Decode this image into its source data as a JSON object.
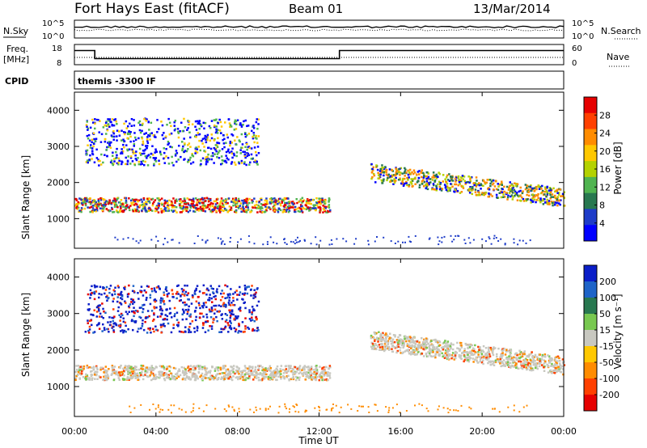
{
  "header": {
    "title": "Fort Hays East (fitACF)",
    "beam": "Beam 01",
    "date": "13/Mar/2014"
  },
  "strips": {
    "nsky_label": "N.Sky",
    "nsky_ticks": [
      "10^5",
      "10^0"
    ],
    "nsearch_label": "N.Search",
    "nsearch_ticks": [
      "10^5",
      "10^0"
    ],
    "freq_label": "Freq.",
    "freq_unit": "[MHz]",
    "freq_ticks": [
      "18",
      "8"
    ],
    "nave_label": "Nave",
    "nave_ticks": [
      "60",
      "0"
    ],
    "cpid_label": "CPID",
    "cpid_value": "themis -3300 IF",
    "freq_steps": [
      {
        "from": "00:00",
        "to": "01:00",
        "mhz": 15
      },
      {
        "from": "01:00",
        "to": "13:00",
        "mhz": 11
      },
      {
        "from": "13:00",
        "to": "24:00",
        "mhz": 15
      }
    ]
  },
  "chart_data": [
    {
      "type": "heatmap",
      "name": "power",
      "xlabel": "Time UT",
      "ylabel": "Slant Range [km]",
      "yticks": [
        "1000",
        "2000",
        "3000",
        "4000"
      ],
      "ylim": [
        180,
        4500
      ],
      "colorbar_label": "Power [dB]",
      "colorbar_ticks": [
        "28",
        "24",
        "20",
        "16",
        "12",
        "8",
        "4"
      ],
      "colorbar_colors": [
        "#e60000",
        "#ff4000",
        "#ff8c00",
        "#ffc800",
        "#b4d200",
        "#50b450",
        "#287850",
        "#1e3cc8",
        "#0000ff"
      ],
      "features": [
        {
          "from": "00:00",
          "to": "12:30",
          "range_km": [
            1200,
            1600
          ],
          "level": "high"
        },
        {
          "from": "14:30",
          "to": "24:00",
          "range_km": [
            1500,
            2500
          ],
          "level": "medium"
        },
        {
          "from": "00:30",
          "to": "09:00",
          "range_km": [
            2500,
            3800
          ],
          "level": "low"
        }
      ]
    },
    {
      "type": "heatmap",
      "name": "velocity",
      "xlabel": "Time UT",
      "ylabel": "Slant Range [km]",
      "yticks": [
        "1000",
        "2000",
        "3000",
        "4000"
      ],
      "ylim": [
        180,
        4500
      ],
      "colorbar_label": "Velocity [m s⁻¹]",
      "colorbar_ticks": [
        "200",
        "100",
        "50",
        "15",
        "-15",
        "-50",
        "-100",
        "-200"
      ],
      "colorbar_colors": [
        "#0a1ec8",
        "#1e64c8",
        "#287850",
        "#78c850",
        "#c8c8c0",
        "#ffc800",
        "#ff8c00",
        "#ff4000",
        "#e60000"
      ],
      "features": [
        {
          "from": "00:00",
          "to": "12:30",
          "range_km": [
            1200,
            1600
          ],
          "level": "near-zero"
        },
        {
          "from": "14:30",
          "to": "24:00",
          "range_km": [
            1500,
            2500
          ],
          "level": "near-zero"
        },
        {
          "from": "00:30",
          "to": "09:00",
          "range_km": [
            2500,
            3800
          ],
          "level": "positive"
        }
      ]
    }
  ],
  "time_axis": {
    "xlabel": "Time UT",
    "ticks": [
      "00:00",
      "04:00",
      "08:00",
      "12:00",
      "16:00",
      "20:00",
      "00:00"
    ]
  }
}
